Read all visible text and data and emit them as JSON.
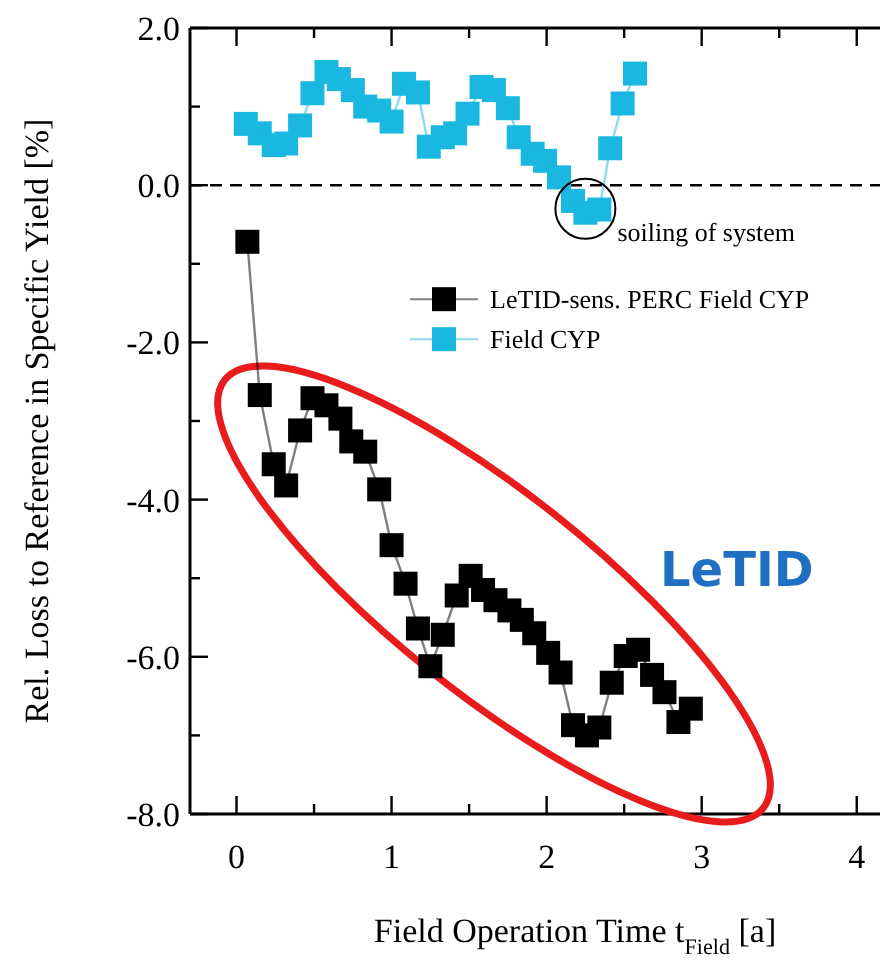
{
  "chart_data": {
    "type": "line",
    "xlabel": "Field Operation Time t$_{Field}$ [a]",
    "ylabel": "Rel. Loss to Reference in Specific Yield [%]",
    "xlim": [
      -0.3,
      4.15
    ],
    "xticks": [
      0,
      {
        "value": 0.5,
        "label": null
      },
      1,
      {
        "value": 1.5,
        "label": null
      },
      2,
      {
        "value": 2.5,
        "label": null
      },
      3,
      {
        "value": 3.5,
        "label": null
      },
      4
    ],
    "ylim": [
      -8,
      2
    ],
    "yticks": [
      {
        "value": -8,
        "label": "-8.0"
      },
      {
        "value": -7,
        "label": null
      },
      {
        "value": -6,
        "label": "-6.0"
      },
      {
        "value": -5,
        "label": null
      },
      {
        "value": -4,
        "label": "-4.0"
      },
      {
        "value": -3,
        "label": null
      },
      {
        "value": -2,
        "label": "-2.0"
      },
      {
        "value": -1,
        "label": null
      },
      {
        "value": 0,
        "label": "0.0"
      },
      {
        "value": 1,
        "label": null
      },
      {
        "value": 2,
        "label": "2.0"
      }
    ],
    "grid": false,
    "legend": "right",
    "marker": "square",
    "line_style": "solid",
    "ref_lines": [
      {
        "axis": "y",
        "value": 0,
        "line_style": "dashed",
        "color": "#000000"
      }
    ],
    "annotations": [
      {
        "text": "soiling of system",
        "x": 2.25,
        "y": -0.3
      },
      "LeTID"
    ],
    "series": [
      {
        "name": "LeTID-sens. PERC Field CYP",
        "color": "#000000",
        "x": [
          0.07,
          0.15,
          0.24,
          0.32,
          0.41,
          0.49,
          0.58,
          0.67,
          0.74,
          0.83,
          0.92,
          1.0,
          1.09,
          1.17,
          1.25,
          1.33,
          1.42,
          1.51,
          1.59,
          1.67,
          1.76,
          1.84,
          1.92,
          2.01,
          2.09,
          2.17,
          2.26,
          2.34,
          2.42,
          2.51,
          2.59,
          2.68,
          2.76,
          2.85,
          2.93
        ],
        "values": [
          -0.72,
          -2.67,
          -3.55,
          -3.82,
          -3.12,
          -2.71,
          -2.8,
          -2.97,
          -3.26,
          -3.39,
          -3.87,
          -4.58,
          -5.07,
          -5.64,
          -6.12,
          -5.72,
          -5.22,
          -4.97,
          -5.15,
          -5.28,
          -5.41,
          -5.53,
          -5.7,
          -5.95,
          -6.2,
          -6.87,
          -7.0,
          -6.9,
          -6.33,
          -5.99,
          -5.91,
          -6.23,
          -6.45,
          -6.83,
          -6.66
        ]
      },
      {
        "name": "Field CYP",
        "color": "#1ab8e0",
        "x": [
          0.06,
          0.15,
          0.24,
          0.32,
          0.41,
          0.49,
          0.58,
          0.66,
          0.75,
          0.83,
          0.92,
          1.0,
          1.08,
          1.17,
          1.24,
          1.33,
          1.41,
          1.49,
          1.58,
          1.66,
          1.75,
          1.82,
          1.91,
          1.99,
          2.08,
          2.17,
          2.25,
          2.34,
          2.41,
          2.49,
          2.57
        ],
        "values": [
          0.78,
          0.66,
          0.51,
          0.53,
          0.76,
          1.17,
          1.44,
          1.35,
          1.21,
          1.0,
          0.95,
          0.81,
          1.29,
          1.18,
          0.49,
          0.61,
          0.66,
          0.91,
          1.25,
          1.21,
          0.98,
          0.61,
          0.4,
          0.31,
          0.1,
          -0.2,
          -0.35,
          -0.31,
          0.47,
          1.04,
          1.42
        ]
      }
    ]
  }
}
